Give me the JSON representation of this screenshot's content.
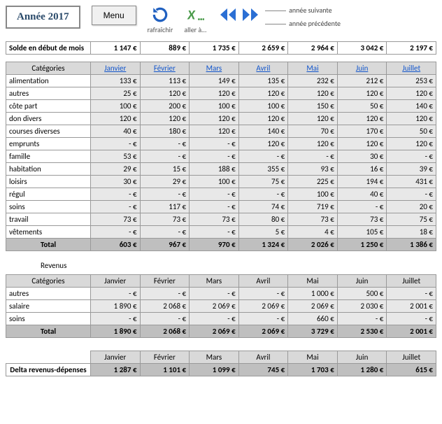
{
  "header": {
    "year_label": "Année 2017",
    "menu_label": "Menu",
    "refresh_label": "rafraîchir",
    "goto_label": "aller à…",
    "next_year_label": "année suivante",
    "prev_year_label": "année précédente"
  },
  "months": [
    "Janvier",
    "Février",
    "Mars",
    "Avril",
    "Mai",
    "Juin",
    "Juillet"
  ],
  "solde": {
    "label": "Solde en début de mois",
    "values": [
      "1 147 €",
      "889 €",
      "1 735 €",
      "2 659 €",
      "2 964 €",
      "3 042 €",
      "2 197 €"
    ]
  },
  "expenses": {
    "header_label": "Catégories",
    "rows": [
      {
        "label": "alimentation",
        "values": [
          "133 €",
          "113 €",
          "149 €",
          "135 €",
          "232 €",
          "212 €",
          "253 €"
        ]
      },
      {
        "label": "autres",
        "values": [
          "25 €",
          "120 €",
          "120 €",
          "120 €",
          "120 €",
          "120 €",
          "120 €"
        ]
      },
      {
        "label": "côte part",
        "values": [
          "100 €",
          "200 €",
          "100 €",
          "100 €",
          "150 €",
          "50 €",
          "140 €"
        ]
      },
      {
        "label": "don divers",
        "values": [
          "120 €",
          "120 €",
          "120 €",
          "120 €",
          "120 €",
          "120 €",
          "120 €"
        ]
      },
      {
        "label": "courses diverses",
        "values": [
          "40 €",
          "180 €",
          "120 €",
          "140 €",
          "70 €",
          "170 €",
          "50 €"
        ]
      },
      {
        "label": "emprunts",
        "values": [
          "- €",
          "- €",
          "- €",
          "120 €",
          "120 €",
          "120 €",
          "120 €"
        ]
      },
      {
        "label": "famille",
        "values": [
          "53 €",
          "- €",
          "- €",
          "- €",
          "- €",
          "30 €",
          "- €"
        ]
      },
      {
        "label": "habitation",
        "values": [
          "29 €",
          "15 €",
          "188 €",
          "355 €",
          "93 €",
          "16 €",
          "39 €"
        ]
      },
      {
        "label": "loisirs",
        "values": [
          "30 €",
          "29 €",
          "100 €",
          "75 €",
          "225 €",
          "194 €",
          "431 €"
        ]
      },
      {
        "label": "régul",
        "values": [
          "- €",
          "- €",
          "- €",
          "- €",
          "100 €",
          "40 €",
          "- €"
        ]
      },
      {
        "label": "soins",
        "values": [
          "- €",
          "117 €",
          "- €",
          "74 €",
          "719 €",
          "- €",
          "20 €"
        ]
      },
      {
        "label": "travail",
        "values": [
          "73 €",
          "73 €",
          "73 €",
          "80 €",
          "73 €",
          "73 €",
          "75 €"
        ]
      },
      {
        "label": "vêtements",
        "values": [
          "- €",
          "- €",
          "- €",
          "5 €",
          "4 €",
          "105 €",
          "18 €"
        ]
      }
    ],
    "total_label": "Total",
    "totals": [
      "603 €",
      "967 €",
      "970 €",
      "1 324 €",
      "2 026 €",
      "1 250 €",
      "1 386 €"
    ]
  },
  "revenus": {
    "section_label": "Revenus",
    "header_label": "Catégories",
    "rows": [
      {
        "label": "autres",
        "values": [
          "- €",
          "- €",
          "- €",
          "- €",
          "1 000 €",
          "500 €",
          "- €"
        ]
      },
      {
        "label": "salaire",
        "values": [
          "1 890 €",
          "2 068 €",
          "2 069 €",
          "2 069 €",
          "2 069 €",
          "2 030 €",
          "2 001 €"
        ]
      },
      {
        "label": "soins",
        "values": [
          "- €",
          "- €",
          "- €",
          "- €",
          "660 €",
          "- €",
          "- €"
        ]
      }
    ],
    "total_label": "Total",
    "totals": [
      "1 890 €",
      "2 068 €",
      "2 069 €",
      "2 069 €",
      "3 729 €",
      "2 530 €",
      "2 001 €"
    ]
  },
  "delta": {
    "label": "Delta revenus-dépenses",
    "values": [
      "1 287 €",
      "1 101 €",
      "1 099 €",
      "745 €",
      "1 703 €",
      "1 280 €",
      "615 €"
    ]
  },
  "colors": {
    "header_bg": "#d9d9d9",
    "row_bg": "#e8e8e8",
    "total_bg": "#bfbfbf",
    "link": "#1155cc",
    "refresh_icon": "#2060c0",
    "excel_icon": "#4a9a4a",
    "nav_icon": "#2b6fd4"
  }
}
